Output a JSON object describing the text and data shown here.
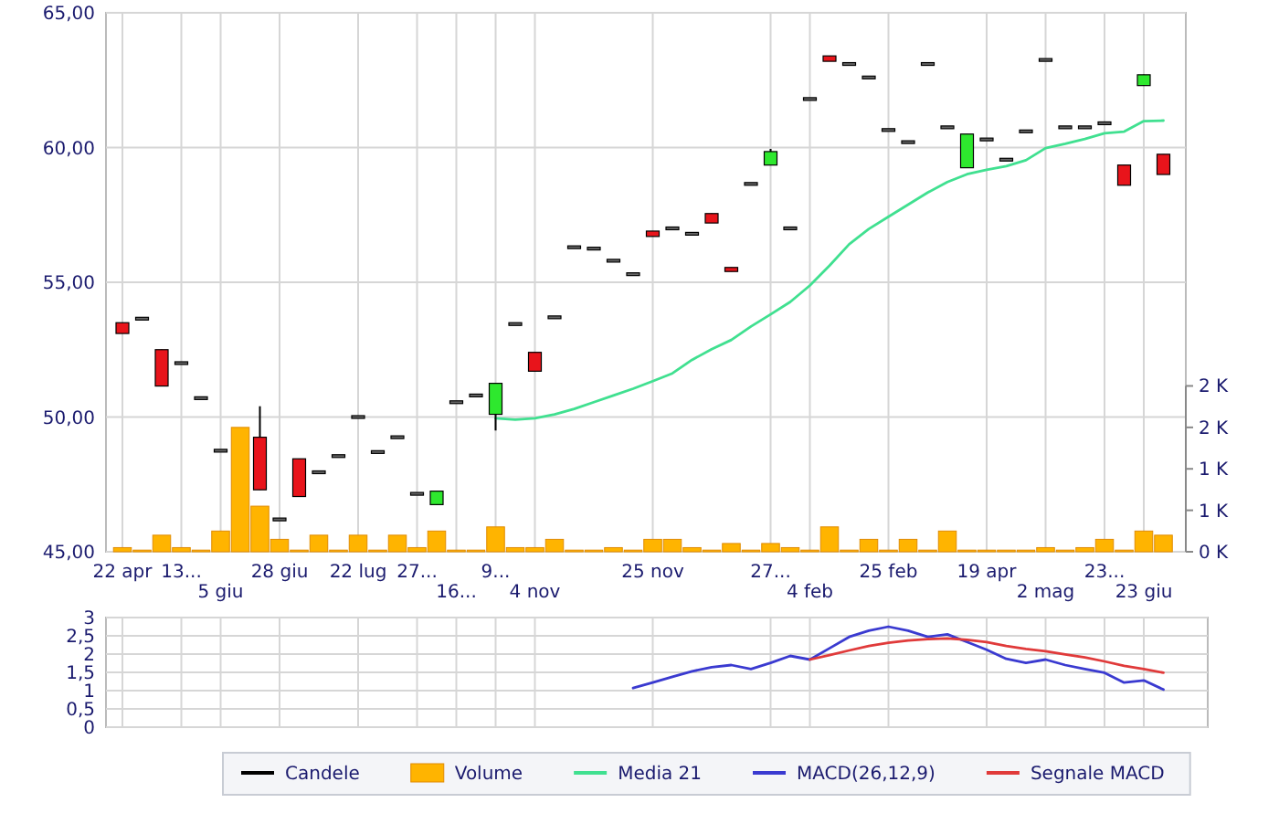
{
  "chart_data": [
    {
      "type": "candlestick",
      "categories": [
        "22 apr",
        null,
        null,
        "13...",
        null,
        "5 giu",
        null,
        null,
        "28 giu",
        null,
        null,
        null,
        "22 lug",
        null,
        null,
        "27...",
        null,
        "16...",
        null,
        "9...",
        null,
        "4 nov",
        null,
        null,
        null,
        null,
        null,
        "25 nov",
        null,
        null,
        null,
        null,
        null,
        "27...",
        null,
        "4 feb",
        null,
        null,
        null,
        "25 feb",
        null,
        null,
        null,
        null,
        "19 apr",
        null,
        null,
        "2 mag",
        null,
        null,
        "23...",
        null,
        "23 giu",
        null
      ],
      "ylim": [
        45,
        65
      ],
      "yticks": [
        {
          "value": 45,
          "label": "45,00"
        },
        {
          "value": 50,
          "label": "50,00"
        },
        {
          "value": 55,
          "label": "55,00"
        },
        {
          "value": 60,
          "label": "60,00"
        },
        {
          "value": 65,
          "label": "65,00"
        }
      ],
      "y2lim": [
        0,
        6500
      ],
      "y2ticks": [
        {
          "value": 0,
          "label": "0 K"
        },
        {
          "value": 500,
          "label": "1 K"
        },
        {
          "value": 1000,
          "label": "1 K"
        },
        {
          "value": 1500,
          "label": "2 K"
        },
        {
          "value": 2000,
          "label": "2 K"
        }
      ],
      "grid": true,
      "legend": "bottom",
      "series": [
        {
          "name": "Candele",
          "color": "#000000",
          "colors": [
            "#e8141b",
            "#666666",
            "#e8141b",
            "#666666",
            "#666666",
            "#666666",
            null,
            "#e8141b",
            "#666666",
            "#e8141b",
            "#666666",
            "#666666",
            "#666666",
            "#666666",
            "#666666",
            "#666666",
            "#2ee82e",
            "#666666",
            "#666666",
            "#2ee82e",
            "#666666",
            "#e8141b",
            "#666666",
            "#666666",
            "#666666",
            "#666666",
            "#666666",
            "#e8141b",
            "#666666",
            "#666666",
            "#e8141b",
            "#e8141b",
            "#666666",
            "#2ee82e",
            "#666666",
            "#666666",
            "#e8141b",
            "#666666",
            "#666666",
            "#666666",
            "#666666",
            "#666666",
            "#666666",
            "#2ee82e",
            "#666666",
            "#666666",
            "#666666",
            "#666666",
            "#666666",
            "#666666",
            "#666666",
            "#e8141b",
            "#2ee82e",
            "#e8141b"
          ],
          "ohlc": [
            [
              53.5,
              53.5,
              53.1,
              53.1
            ],
            [
              53.65,
              53.65,
              53.65,
              53.65
            ],
            [
              52.5,
              52.5,
              51.15,
              51.15
            ],
            [
              52,
              52,
              52,
              52
            ],
            [
              50.7,
              50.7,
              50.7,
              50.7
            ],
            [
              48.75,
              48.75,
              48.75,
              48.75
            ],
            null,
            [
              49.25,
              50.4,
              47.3,
              47.3
            ],
            [
              46.2,
              46.2,
              46.2,
              46.2
            ],
            [
              48.45,
              48.45,
              47.05,
              47.05
            ],
            [
              47.95,
              47.95,
              47.95,
              47.95
            ],
            [
              48.55,
              48.55,
              48.55,
              48.55
            ],
            [
              50,
              50,
              50,
              50
            ],
            [
              48.7,
              48.7,
              48.7,
              48.7
            ],
            [
              49.25,
              49.25,
              49.25,
              49.25
            ],
            [
              47.15,
              47.15,
              47.15,
              47.15
            ],
            [
              46.75,
              47.25,
              46.75,
              47.25
            ],
            [
              50.55,
              50.55,
              50.55,
              50.55
            ],
            [
              50.8,
              50.8,
              50.8,
              50.8
            ],
            [
              50.1,
              51.25,
              49.5,
              51.25
            ],
            [
              53.45,
              53.45,
              53.45,
              53.45
            ],
            [
              52.4,
              52.4,
              51.7,
              51.7
            ],
            [
              53.7,
              53.7,
              53.7,
              53.7
            ],
            [
              56.3,
              56.3,
              56.3,
              56.3
            ],
            [
              56.25,
              56.25,
              56.25,
              56.25
            ],
            [
              55.8,
              55.8,
              55.8,
              55.8
            ],
            [
              55.3,
              55.3,
              55.3,
              55.3
            ],
            [
              56.9,
              56.9,
              56.7,
              56.7
            ],
            [
              57,
              57,
              57,
              57
            ],
            [
              56.8,
              56.8,
              56.8,
              56.8
            ],
            [
              57.55,
              57.55,
              57.2,
              57.2
            ],
            [
              55.55,
              55.55,
              55.4,
              55.4
            ],
            [
              58.65,
              58.65,
              58.65,
              58.65
            ],
            [
              59.35,
              59.95,
              59.35,
              59.85
            ],
            [
              57,
              57,
              57,
              57
            ],
            [
              61.8,
              61.8,
              61.8,
              61.8
            ],
            [
              63.4,
              63.4,
              63.2,
              63.2
            ],
            [
              63.1,
              63.1,
              63.1,
              63.1
            ],
            [
              62.6,
              62.6,
              62.6,
              62.6
            ],
            [
              60.65,
              60.65,
              60.65,
              60.65
            ],
            [
              60.2,
              60.2,
              60.2,
              60.2
            ],
            [
              63.1,
              63.1,
              63.1,
              63.1
            ],
            [
              60.75,
              60.75,
              60.75,
              60.75
            ],
            [
              59.25,
              60.5,
              59.25,
              60.5
            ],
            [
              60.3,
              60.3,
              60.3,
              60.3
            ],
            [
              59.55,
              59.55,
              59.55,
              59.55
            ],
            [
              60.6,
              60.6,
              60.6,
              60.6
            ],
            [
              63.25,
              63.25,
              63.25,
              63.25
            ],
            [
              60.75,
              60.75,
              60.75,
              60.75
            ],
            [
              60.75,
              60.75,
              60.75,
              60.75
            ],
            [
              60.9,
              60.9,
              60.9,
              60.9
            ],
            [
              59.35,
              59.35,
              58.6,
              58.6
            ],
            [
              62.3,
              62.7,
              62.3,
              62.7
            ],
            [
              59.75,
              59.75,
              59,
              59
            ]
          ]
        },
        {
          "name": "Volume",
          "type": "bar",
          "axis": "y2",
          "color": "#ffb400",
          "values": [
            50,
            20,
            200,
            50,
            20,
            250,
            1500,
            550,
            150,
            20,
            200,
            20,
            200,
            20,
            200,
            50,
            250,
            20,
            20,
            300,
            50,
            50,
            150,
            20,
            20,
            50,
            20,
            150,
            150,
            50,
            20,
            100,
            20,
            100,
            50,
            20,
            300,
            20,
            150,
            20,
            150,
            20,
            250,
            20,
            20,
            20,
            20,
            50,
            20,
            50,
            150,
            20,
            250,
            200
          ]
        },
        {
          "name": "Media 21",
          "type": "line",
          "color": "#40e090",
          "values": [
            null,
            null,
            null,
            null,
            null,
            null,
            null,
            null,
            null,
            null,
            null,
            null,
            null,
            null,
            null,
            null,
            null,
            null,
            null,
            49.95,
            49.9,
            49.95,
            50.1,
            50.3,
            50.55,
            50.8,
            51.05,
            51.33,
            51.62,
            52.12,
            52.52,
            52.86,
            53.36,
            53.81,
            54.27,
            54.88,
            55.62,
            56.41,
            56.98,
            57.43,
            57.88,
            58.33,
            58.72,
            59.01,
            59.17,
            59.31,
            59.53,
            59.98,
            60.14,
            60.32,
            60.53,
            60.59,
            60.98,
            61
          ]
        }
      ]
    },
    {
      "type": "line",
      "categories": [
        null,
        null,
        null,
        null,
        null,
        null,
        null,
        null,
        null,
        null,
        null,
        null,
        null,
        null,
        null,
        null,
        null,
        null,
        null,
        null,
        null,
        null,
        null,
        null,
        null,
        null,
        null,
        null,
        null,
        null,
        null,
        null,
        null,
        null,
        null,
        null,
        null,
        null,
        null,
        null,
        null,
        null,
        null,
        null,
        null,
        null,
        null,
        null,
        null,
        null,
        null,
        null,
        null,
        null
      ],
      "tick_labels": "y",
      "ylim": [
        0,
        3
      ],
      "yticks": [
        0,
        {
          "value": 0.5,
          "label": "0,5"
        },
        1,
        {
          "value": 1.5,
          "label": "1,5"
        },
        2,
        {
          "value": 2.5,
          "label": "2,5"
        },
        3
      ],
      "grid": true,
      "legend": "bottom",
      "series": [
        {
          "name": "MACD(26,12,9)",
          "color": "#3a3ad0",
          "values": [
            null,
            null,
            null,
            null,
            null,
            null,
            null,
            null,
            null,
            null,
            null,
            null,
            null,
            null,
            null,
            null,
            null,
            null,
            null,
            null,
            null,
            null,
            null,
            null,
            null,
            null,
            1.07,
            1.22,
            1.38,
            1.53,
            1.64,
            1.7,
            1.59,
            1.76,
            1.95,
            1.85,
            2.16,
            2.47,
            2.64,
            2.75,
            2.64,
            2.47,
            2.54,
            2.33,
            2.12,
            1.87,
            1.76,
            1.85,
            1.7,
            1.59,
            1.49,
            1.22,
            1.28,
            1.03
          ]
        },
        {
          "name": "Segnale MACD",
          "color": "#e03a3a",
          "values": [
            null,
            null,
            null,
            null,
            null,
            null,
            null,
            null,
            null,
            null,
            null,
            null,
            null,
            null,
            null,
            null,
            null,
            null,
            null,
            null,
            null,
            null,
            null,
            null,
            null,
            null,
            null,
            null,
            null,
            null,
            null,
            null,
            null,
            null,
            null,
            1.85,
            1.97,
            2.1,
            2.22,
            2.31,
            2.37,
            2.41,
            2.43,
            2.39,
            2.33,
            2.22,
            2.14,
            2.08,
            1.99,
            1.91,
            1.8,
            1.68,
            1.59,
            1.49
          ]
        }
      ]
    }
  ]
}
